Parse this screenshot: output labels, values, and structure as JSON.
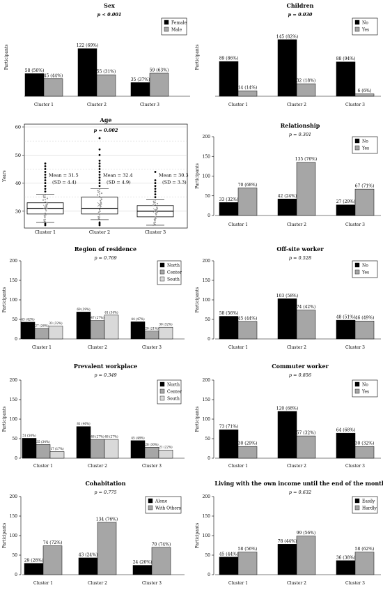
{
  "chart_data": [
    {
      "type": "bar",
      "title": "Sex",
      "pvalue": "p < 0.001",
      "pvalue_bold": true,
      "ylabel": "Participants",
      "ylim": [
        0,
        200
      ],
      "yticks": [
        "0",
        "50",
        "100",
        "150",
        "200"
      ],
      "show_yticks": false,
      "categories": [
        "Cluster 1",
        "Cluster 2",
        "Cluster 3"
      ],
      "series": [
        {
          "name": "Female",
          "color": "#000000",
          "values": [
            58,
            122,
            35
          ],
          "labels": [
            "58 (56%)",
            "122 (69%)",
            "35 (37%)"
          ]
        },
        {
          "name": "Male",
          "color": "#a6a6a6",
          "values": [
            45,
            55,
            59
          ],
          "labels": [
            "45 (44%)",
            "55 (31%)",
            "59 (63%)"
          ]
        }
      ]
    },
    {
      "type": "bar",
      "title": "Children",
      "pvalue": "p = 0.030",
      "pvalue_bold": true,
      "ylabel": "Participants",
      "ylim": [
        0,
        200
      ],
      "yticks": [
        "0",
        "50",
        "100",
        "150",
        "200"
      ],
      "show_yticks": false,
      "categories": [
        "Cluster 1",
        "Cluster 2",
        "Cluster 3"
      ],
      "series": [
        {
          "name": "No",
          "color": "#000000",
          "values": [
            89,
            145,
            88
          ],
          "labels": [
            "89 (86%)",
            "145 (82%)",
            "88 (94%)"
          ]
        },
        {
          "name": "Yes",
          "color": "#a6a6a6",
          "values": [
            14,
            32,
            6
          ],
          "labels": [
            "14 (14%)",
            "32 (18%)",
            "6 (6%)"
          ]
        }
      ]
    },
    {
      "type": "box",
      "title": "Age",
      "pvalue": "p = 0.002",
      "pvalue_bold": true,
      "ylabel": "Years",
      "ylim": [
        24,
        61
      ],
      "yticks": [
        "30",
        "40",
        "50",
        "60"
      ],
      "categories": [
        "Cluster 1",
        "Cluster 2",
        "Cluster 3"
      ],
      "boxes": [
        {
          "min": 26,
          "q1": 29,
          "median": 31,
          "q3": 33,
          "max": 36,
          "mean": 31.5,
          "outliers": [
            37,
            38,
            39,
            40,
            41,
            42,
            43,
            44,
            45,
            46,
            47,
            25.5,
            25
          ],
          "mean_label": "Mean = 31.5",
          "sd_label": "(SD = 4.4)"
        },
        {
          "min": 27,
          "q1": 29,
          "median": 31,
          "q3": 35,
          "max": 38,
          "mean": 32.4,
          "outliers": [
            39,
            40,
            41,
            42,
            43,
            44,
            45,
            46,
            47,
            48,
            50,
            52,
            56,
            26,
            25.5,
            25
          ],
          "mean_label": "Mean = 32.4",
          "sd_label": "(SD = 4.9)"
        },
        {
          "min": 25,
          "q1": 28,
          "median": 30,
          "q3": 32,
          "max": 34,
          "mean": 30.3,
          "outliers": [
            35,
            36,
            37,
            38,
            39,
            40,
            41,
            44
          ],
          "mean_label": "Mean = 30.3",
          "sd_label": "(SD = 3.3)"
        }
      ]
    },
    {
      "type": "bar",
      "title": "Relationship",
      "pvalue": "p = 0.301",
      "pvalue_bold": false,
      "ylabel": "Participants",
      "ylim": [
        0,
        200
      ],
      "yticks": [
        "0",
        "50",
        "100",
        "150",
        "200"
      ],
      "show_yticks": true,
      "categories": [
        "Cluster 1",
        "Cluster 2",
        "Cluster 3"
      ],
      "series": [
        {
          "name": "No",
          "color": "#000000",
          "values": [
            33,
            42,
            27
          ],
          "labels": [
            "33 (32%)",
            "42 (24%)",
            "27 (29%)"
          ]
        },
        {
          "name": "Yes",
          "color": "#a6a6a6",
          "values": [
            70,
            135,
            67
          ],
          "labels": [
            "70 (68%)",
            "135 (76%)",
            "67 (71%)"
          ]
        }
      ]
    },
    {
      "type": "bar",
      "title": "Region of residence",
      "pvalue": "p = 0.769",
      "pvalue_bold": false,
      "ylabel": "Participants",
      "ylim": [
        0,
        200
      ],
      "yticks": [
        "0",
        "50",
        "100",
        "150",
        "200"
      ],
      "show_yticks": true,
      "categories": [
        "Cluster 1",
        "Cluster 2",
        "Cluster 3"
      ],
      "series": [
        {
          "name": "North",
          "color": "#000000",
          "values": [
            43,
            69,
            44
          ],
          "labels": [
            "43 (42%)",
            "69 (39%)",
            "44 (47%)"
          ]
        },
        {
          "name": "Center",
          "color": "#a6a6a6",
          "values": [
            27,
            47,
            20
          ],
          "labels": [
            "27 (26%)",
            "47 (27%)",
            "20 (21%)"
          ]
        },
        {
          "name": "South",
          "color": "#d9d9d9",
          "values": [
            33,
            61,
            30
          ],
          "labels": [
            "33 (32%)",
            "61 (34%)",
            "30 (32%)"
          ]
        }
      ]
    },
    {
      "type": "bar",
      "title": "Off-site worker",
      "pvalue": "p = 0.528",
      "pvalue_bold": false,
      "ylabel": "Participants",
      "ylim": [
        0,
        200
      ],
      "yticks": [
        "0",
        "50",
        "100",
        "150",
        "200"
      ],
      "show_yticks": true,
      "categories": [
        "Cluster 1",
        "Cluster 2",
        "Cluster 3"
      ],
      "series": [
        {
          "name": "No",
          "color": "#000000",
          "values": [
            58,
            103,
            48
          ],
          "labels": [
            "58 (56%)",
            "103 (58%)",
            "48 (51%)"
          ]
        },
        {
          "name": "Yes",
          "color": "#a6a6a6",
          "values": [
            45,
            74,
            46
          ],
          "labels": [
            "45 (44%)",
            "74 (42%)",
            "46 (49%)"
          ]
        }
      ]
    },
    {
      "type": "bar",
      "title": "Prevalent workplace",
      "pvalue": "p = 0.349",
      "pvalue_bold": false,
      "ylabel": "Participants",
      "ylim": [
        0,
        200
      ],
      "yticks": [
        "0",
        "50",
        "100",
        "150",
        "200"
      ],
      "show_yticks": true,
      "categories": [
        "Cluster 1",
        "Cluster 2",
        "Cluster 3"
      ],
      "series": [
        {
          "name": "North",
          "color": "#000000",
          "values": [
            51,
            81,
            45
          ],
          "labels": [
            "51 (50%)",
            "81 (46%)",
            "45 (48%)"
          ]
        },
        {
          "name": "Center",
          "color": "#a6a6a6",
          "values": [
            35,
            48,
            28
          ],
          "labels": [
            "35 (34%)",
            "48 (27%)",
            "28 (30%)"
          ]
        },
        {
          "name": "South",
          "color": "#d9d9d9",
          "values": [
            17,
            48,
            21
          ],
          "labels": [
            "17 (17%)",
            "48 (27%)",
            "21 (22%)"
          ]
        }
      ]
    },
    {
      "type": "bar",
      "title": "Commuter worker",
      "pvalue": "p = 0.856",
      "pvalue_bold": false,
      "ylabel": "Participants",
      "ylim": [
        0,
        200
      ],
      "yticks": [
        "0",
        "50",
        "100",
        "150",
        "200"
      ],
      "show_yticks": true,
      "categories": [
        "Cluster 1",
        "Cluster 2",
        "Cluster 3"
      ],
      "series": [
        {
          "name": "No",
          "color": "#000000",
          "values": [
            73,
            120,
            64
          ],
          "labels": [
            "73 (71%)",
            "120 (68%)",
            "64 (68%)"
          ]
        },
        {
          "name": "Yes",
          "color": "#a6a6a6",
          "values": [
            30,
            57,
            30
          ],
          "labels": [
            "30 (29%)",
            "57 (32%)",
            "30 (32%)"
          ]
        }
      ]
    },
    {
      "type": "bar",
      "title": "Cohabitation",
      "pvalue": "p = 0.775",
      "pvalue_bold": false,
      "ylabel": "Participants",
      "ylim": [
        0,
        200
      ],
      "yticks": [
        "0",
        "50",
        "100",
        "150",
        "200"
      ],
      "show_yticks": true,
      "categories": [
        "Cluster 1",
        "Cluster 2",
        "Cluster 3"
      ],
      "series": [
        {
          "name": "Alone",
          "color": "#000000",
          "values": [
            29,
            43,
            24
          ],
          "labels": [
            "29 (28%)",
            "43 (24%)",
            "24 (26%)"
          ]
        },
        {
          "name": "With Others",
          "color": "#a6a6a6",
          "values": [
            74,
            134,
            70
          ],
          "labels": [
            "74 (72%)",
            "134 (76%)",
            "70 (74%)"
          ]
        }
      ]
    },
    {
      "type": "bar",
      "title": "Living with the own income until the end of the month",
      "pvalue": "p = 0.632",
      "pvalue_bold": false,
      "ylabel": "Participants",
      "ylim": [
        0,
        200
      ],
      "yticks": [
        "0",
        "50",
        "100",
        "150",
        "200"
      ],
      "show_yticks": true,
      "categories": [
        "Cluster 1",
        "Cluster 2",
        "Cluster 3"
      ],
      "series": [
        {
          "name": "Easily",
          "color": "#000000",
          "values": [
            45,
            78,
            36
          ],
          "labels": [
            "45 (44%)",
            "78 (44%)",
            "36 (38%)"
          ]
        },
        {
          "name": "Hardly",
          "color": "#a6a6a6",
          "values": [
            58,
            99,
            58
          ],
          "labels": [
            "58 (56%)",
            "99 (56%)",
            "58 (62%)"
          ]
        }
      ]
    }
  ]
}
